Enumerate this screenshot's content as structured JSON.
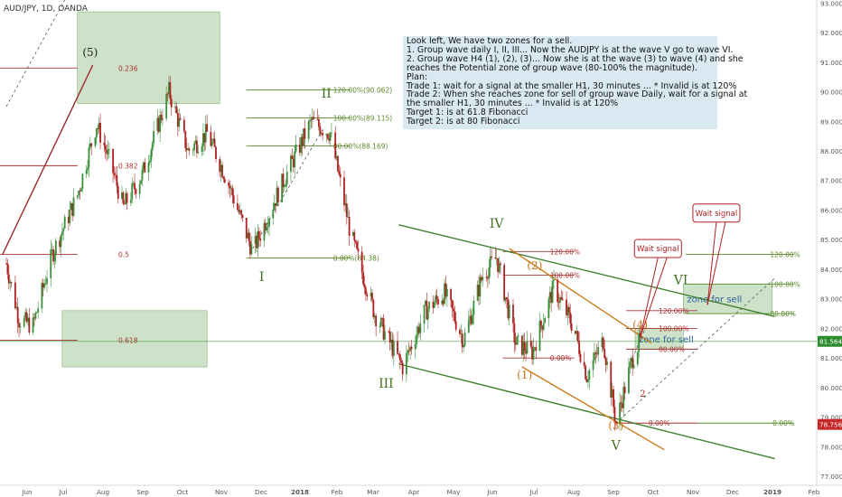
{
  "symbol_label": "AUD/JPY, 1D, OANDA",
  "colors": {
    "up": "#3a8f3a",
    "down": "#b02020",
    "green_line": "#3f7f2f",
    "orange_line": "#cc7a1a",
    "red_line": "#9e2a2a",
    "fib_red": "#a83232",
    "fib_green": "#5a8a2a",
    "zone_fill": "#9dc593",
    "note_fill": "#bad5e6",
    "price_tag_green": "#2e8b2e",
    "price_tag_red": "#c62828"
  },
  "note": {
    "lines": [
      "Look left, We have two zones for a sell.",
      "1. Group wave daily I, II, III... Now the AUDJPY is at the wave V go to wave VI.",
      "2. Group wave H4 (1), (2), (3)... Now she is at the wave (3) to wave (4) and she",
      "reaches the Potential zone of group wave (80-100% the magnitude).",
      "Plan:",
      "Trade 1: wait for a signal at the smaller H1, 30 minutes ... * Invalid is at 120%",
      "Trade 2: When she reaches zone for sell of group wave Daily, wait for a signal at",
      "the smaller H1, 30 minutes ... * Invalid is at 120%",
      "Target 1: is at 61.8 Fibonacci",
      "Target 2: is at 80 Fibonacci"
    ]
  },
  "chart_data": {
    "type": "candlestick",
    "title": "AUD/JPY, 1D, OANDA",
    "x_axis": {
      "tick_labels": [
        "Jun",
        "Jul",
        "Aug",
        "Sep",
        "Oct",
        "Nov",
        "Dec",
        "2018",
        "Feb",
        "Mar",
        "Apr",
        "May",
        "Jun",
        "Jul",
        "Aug",
        "Sep",
        "Oct",
        "Nov",
        "Dec",
        "2019",
        "Feb"
      ]
    },
    "y_axis": {
      "range": [
        76.7,
        93.1
      ],
      "tick_labels": [
        "93.000",
        "92.000",
        "91.000",
        "90.000",
        "89.000",
        "88.000",
        "87.000",
        "86.000",
        "85.000",
        "84.000",
        "83.000",
        "82.000",
        "81.000",
        "80.000",
        "79.000",
        "78.000",
        "77.000"
      ],
      "tick_values": [
        93,
        92,
        91,
        90,
        89,
        88,
        87,
        86,
        85,
        84,
        83,
        82,
        81,
        80,
        79,
        78,
        77
      ]
    },
    "price_tags": [
      {
        "label": "81.564",
        "value": 81.564,
        "color": "green"
      },
      {
        "label": "78.756",
        "value": 78.756,
        "color": "red"
      }
    ],
    "price_path": [
      {
        "date": "2017-05-15",
        "price": 84.2
      },
      {
        "date": "2017-05-25",
        "price": 82.3
      },
      {
        "date": "2017-06-05",
        "price": 82.1
      },
      {
        "date": "2017-06-20",
        "price": 84.5
      },
      {
        "date": "2017-07-10",
        "price": 86.5
      },
      {
        "date": "2017-07-25",
        "price": 88.9
      },
      {
        "date": "2017-08-05",
        "price": 87.6
      },
      {
        "date": "2017-08-15",
        "price": 86.1
      },
      {
        "date": "2017-08-30",
        "price": 87.2
      },
      {
        "date": "2017-09-20",
        "price": 90.0
      },
      {
        "date": "2017-10-05",
        "price": 88.0
      },
      {
        "date": "2017-10-20",
        "price": 88.6
      },
      {
        "date": "2017-11-05",
        "price": 87.0
      },
      {
        "date": "2017-11-25",
        "price": 84.6
      },
      {
        "date": "2017-12-15",
        "price": 86.6
      },
      {
        "date": "2018-01-10",
        "price": 89.0
      },
      {
        "date": "2018-01-25",
        "price": 88.6
      },
      {
        "date": "2018-02-10",
        "price": 85.2
      },
      {
        "date": "2018-03-01",
        "price": 82.5
      },
      {
        "date": "2018-03-23",
        "price": 80.7
      },
      {
        "date": "2018-04-10",
        "price": 82.6
      },
      {
        "date": "2018-04-25",
        "price": 83.2
      },
      {
        "date": "2018-05-10",
        "price": 81.6
      },
      {
        "date": "2018-05-25",
        "price": 83.8
      },
      {
        "date": "2018-06-05",
        "price": 84.4
      },
      {
        "date": "2018-06-20",
        "price": 81.5
      },
      {
        "date": "2018-07-03",
        "price": 81.2
      },
      {
        "date": "2018-07-20",
        "price": 83.4
      },
      {
        "date": "2018-08-05",
        "price": 82.0
      },
      {
        "date": "2018-08-15",
        "price": 80.4
      },
      {
        "date": "2018-08-28",
        "price": 81.6
      },
      {
        "date": "2018-09-07",
        "price": 78.8
      },
      {
        "date": "2018-09-20",
        "price": 81.0
      },
      {
        "date": "2018-09-26",
        "price": 81.6
      }
    ],
    "wave_labels": [
      {
        "text": "(5)",
        "date": "2017-07-20",
        "price": 91.2,
        "color": "dark"
      },
      {
        "text": "II",
        "date": "2018-01-22",
        "price": 89.8,
        "color": "green"
      },
      {
        "text": "I",
        "date": "2017-12-02",
        "price": 83.6,
        "color": "green"
      },
      {
        "text": "III",
        "date": "2018-03-10",
        "price": 80.0,
        "color": "green"
      },
      {
        "text": "IV",
        "date": "2018-06-05",
        "price": 85.4,
        "color": "green"
      },
      {
        "text": "V",
        "date": "2018-09-07",
        "price": 77.9,
        "color": "green"
      },
      {
        "text": "VI",
        "date": "2018-10-28",
        "price": 83.5,
        "color": "green"
      },
      {
        "text": "(2)",
        "date": "2018-07-05",
        "price": 84.0,
        "color": "orange"
      },
      {
        "text": "(1)",
        "date": "2018-06-27",
        "price": 80.3,
        "color": "orange"
      },
      {
        "text": "(3)",
        "date": "2018-09-07",
        "price": 78.6,
        "color": "orange"
      },
      {
        "text": "(4)",
        "date": "2018-09-26",
        "price": 82.0,
        "color": "orange"
      },
      {
        "text": "2",
        "date": "2018-09-28",
        "price": 79.7,
        "color": "red"
      }
    ],
    "fib_levels": [
      {
        "label": "0.236",
        "price": 90.8,
        "start": "2017-05-10",
        "end": "2017-07-10",
        "color": "red"
      },
      {
        "label": "0.382",
        "price": 87.5,
        "start": "2017-05-10",
        "end": "2017-07-10",
        "color": "red"
      },
      {
        "label": "0.5",
        "price": 84.5,
        "start": "2017-05-10",
        "end": "2017-07-10",
        "color": "red"
      },
      {
        "label": "0.618",
        "price": 81.6,
        "start": "2017-05-10",
        "end": "2017-07-10",
        "color": "red"
      },
      {
        "label": "120.00%(90.062)",
        "price": 90.062,
        "start": "2017-11-20",
        "end": "2018-02-10",
        "color": "green"
      },
      {
        "label": "100.00%(89.115)",
        "price": 89.115,
        "start": "2017-11-20",
        "end": "2018-02-10",
        "color": "green"
      },
      {
        "label": "80.00%(88.169)",
        "price": 88.169,
        "start": "2017-11-20",
        "end": "2018-02-10",
        "color": "green"
      },
      {
        "label": "0.00%(84.38)",
        "price": 84.38,
        "start": "2017-11-20",
        "end": "2018-02-10",
        "color": "green"
      },
      {
        "label": "120.00%",
        "price": 84.6,
        "start": "2018-06-10",
        "end": "2018-08-05",
        "color": "red"
      },
      {
        "label": "100.00%",
        "price": 83.8,
        "start": "2018-06-10",
        "end": "2018-08-05",
        "color": "red"
      },
      {
        "label": "0.00%",
        "price": 81.0,
        "start": "2018-06-10",
        "end": "2018-08-05",
        "color": "red"
      },
      {
        "label": "120.00%",
        "price": 82.6,
        "start": "2018-09-15",
        "end": "2018-11-10",
        "color": "red"
      },
      {
        "label": "100.00%",
        "price": 82.0,
        "start": "2018-09-15",
        "end": "2018-11-10",
        "color": "red"
      },
      {
        "label": "80.00%",
        "price": 81.3,
        "start": "2018-09-15",
        "end": "2018-11-10",
        "color": "red"
      },
      {
        "label": "0.00%",
        "price": 78.8,
        "start": "2018-09-07",
        "end": "2018-11-10",
        "color": "red"
      },
      {
        "label": "120.00%",
        "price": 84.5,
        "start": "2018-11-01",
        "end": "2019-01-25",
        "color": "green"
      },
      {
        "label": "100.00%",
        "price": 83.5,
        "start": "2018-11-01",
        "end": "2019-01-25",
        "color": "green"
      },
      {
        "label": "80.00%",
        "price": 82.5,
        "start": "2018-11-01",
        "end": "2019-01-25",
        "color": "green"
      },
      {
        "label": "0.00%",
        "price": 78.8,
        "start": "2018-11-10",
        "end": "2019-01-25",
        "color": "green"
      }
    ],
    "zones": [
      {
        "label": "",
        "start": "2017-07-10",
        "end": "2017-10-30",
        "top": 92.7,
        "bottom": 89.6
      },
      {
        "label": "",
        "start": "2017-06-28",
        "end": "2017-10-20",
        "top": 82.6,
        "bottom": 80.7
      },
      {
        "label": "zone for sell",
        "start": "2018-09-22",
        "end": "2018-10-30",
        "top": 82.0,
        "bottom": 81.3
      },
      {
        "label": "zone for sell",
        "start": "2018-10-30",
        "end": "2019-01-08",
        "top": 83.5,
        "bottom": 82.5
      }
    ],
    "trendlines": [
      {
        "color": "red",
        "style": "solid",
        "start": {
          "date": "2017-05-12",
          "price": 84.5
        },
        "end": {
          "date": "2017-07-22",
          "price": 90.9
        }
      },
      {
        "color": "dark",
        "style": "dashed",
        "start": {
          "date": "2017-05-15",
          "price": 89.5
        },
        "end": {
          "date": "2017-06-30",
          "price": 93.1
        }
      },
      {
        "color": "dark",
        "style": "dashed",
        "start": {
          "date": "2017-11-25",
          "price": 84.7
        },
        "end": {
          "date": "2018-01-20",
          "price": 88.8
        }
      },
      {
        "color": "green",
        "style": "solid",
        "start": {
          "date": "2018-03-20",
          "price": 85.5
        },
        "end": {
          "date": "2019-01-10",
          "price": 82.4
        }
      },
      {
        "color": "green",
        "style": "solid",
        "start": {
          "date": "2018-03-20",
          "price": 80.8
        },
        "end": {
          "date": "2019-01-10",
          "price": 77.6
        }
      },
      {
        "color": "orange",
        "style": "solid",
        "start": {
          "date": "2018-06-15",
          "price": 84.7
        },
        "end": {
          "date": "2018-10-05",
          "price": 81.5
        }
      },
      {
        "color": "orange",
        "style": "solid",
        "start": {
          "date": "2018-06-25",
          "price": 80.7
        },
        "end": {
          "date": "2018-10-15",
          "price": 77.9
        }
      },
      {
        "color": "dark",
        "style": "dashed",
        "start": {
          "date": "2018-09-07",
          "price": 78.8
        },
        "end": {
          "date": "2019-01-10",
          "price": 83.7
        }
      },
      {
        "color": "dark",
        "style": "dashed",
        "start": {
          "date": "2018-09-20",
          "price": 81.0
        },
        "end": {
          "date": "2018-10-01",
          "price": 82.1
        }
      }
    ],
    "callouts": [
      {
        "text": "Wait signal",
        "date": "2018-10-10",
        "price": 84.7,
        "tip_date": "2018-09-26",
        "tip_price": 81.7
      },
      {
        "text": "Wait signal",
        "date": "2018-11-25",
        "price": 85.9,
        "tip_date": "2018-11-18",
        "tip_price": 82.8
      }
    ]
  }
}
